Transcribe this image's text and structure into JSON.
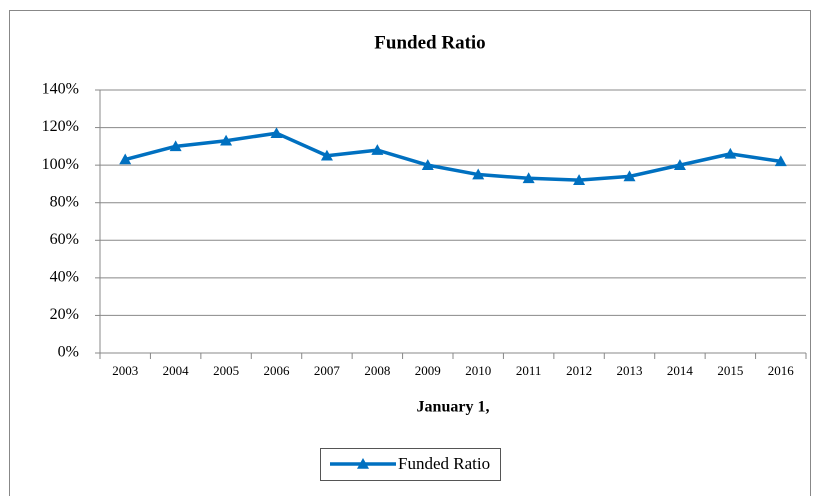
{
  "chart_data": {
    "type": "line",
    "title": "Funded Ratio",
    "x_label": "January 1,",
    "categories": [
      "2003",
      "2004",
      "2005",
      "2006",
      "2007",
      "2008",
      "2009",
      "2010",
      "2011",
      "2012",
      "2013",
      "2014",
      "2015",
      "2016"
    ],
    "series": [
      {
        "name": "Funded Ratio",
        "color": "#0070c0",
        "values": [
          103,
          110,
          113,
          117,
          105,
          108,
          100,
          95,
          93,
          92,
          94,
          100,
          106,
          102
        ]
      }
    ],
    "ylim": [
      0,
      140
    ],
    "yticks": [
      {
        "value": 0,
        "label": "0%"
      },
      {
        "value": 20,
        "label": "20%"
      },
      {
        "value": 40,
        "label": "40%"
      },
      {
        "value": 60,
        "label": "60%"
      },
      {
        "value": 80,
        "label": "80%"
      },
      {
        "value": 100,
        "label": "100%"
      },
      {
        "value": 120,
        "label": "120%"
      },
      {
        "value": 140,
        "label": "140%"
      }
    ],
    "grid": true,
    "legend": "bottom"
  }
}
